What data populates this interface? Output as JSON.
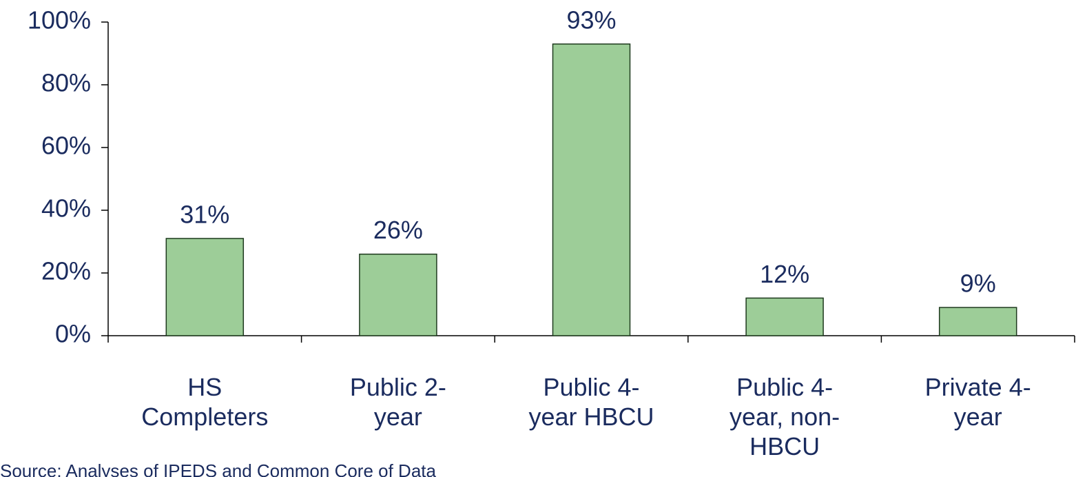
{
  "chart_data": {
    "type": "bar",
    "categories": [
      "HS Completers",
      "Public 2-year",
      "Public 4-year HBCU",
      "Public 4-year, non-HBCU",
      "Private 4-year"
    ],
    "values": [
      31,
      26,
      93,
      12,
      9
    ],
    "value_labels": [
      "31%",
      "26%",
      "93%",
      "12%",
      "9%"
    ],
    "color": "#9dcd98",
    "ylim": [
      0,
      100
    ],
    "yticks": [
      {
        "value": 0,
        "label": "0%"
      },
      {
        "value": 20,
        "label": "20%"
      },
      {
        "value": 40,
        "label": "40%"
      },
      {
        "value": 60,
        "label": "60%"
      },
      {
        "value": 80,
        "label": "80%"
      },
      {
        "value": 100,
        "label": "100%"
      }
    ],
    "grid": false,
    "source": "Source: Analyses of IPEDS and Common Core of Data"
  }
}
